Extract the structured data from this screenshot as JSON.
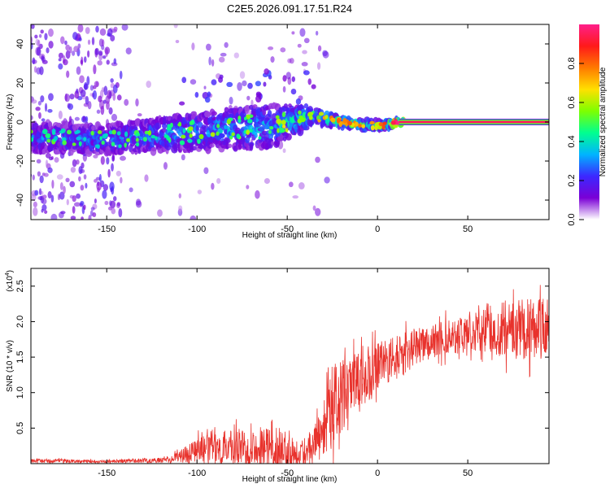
{
  "title": "C2E5.2026.091.17.51.R24",
  "chart_data": [
    {
      "type": "heatmap",
      "xlabel": "Height of straight line (km)",
      "ylabel": "Frequency (Hz)",
      "xlim": [
        -192,
        95
      ],
      "ylim": [
        -50,
        50
      ],
      "xticks": [
        "-150",
        "-100",
        "-50",
        "0",
        "50"
      ],
      "xtick_values": [
        -150,
        -100,
        -50,
        0,
        50
      ],
      "yticks": [
        "-40",
        "-20",
        "0",
        "20",
        "40"
      ],
      "ytick_values": [
        -40,
        -20,
        0,
        20,
        40
      ],
      "colorbar": {
        "label": "Normalized spectral amplitude",
        "range": [
          0,
          1
        ],
        "ticks": [
          "0.0",
          "0.2",
          "0.4",
          "0.6",
          "0.8"
        ],
        "tick_values": [
          0.0,
          0.2,
          0.4,
          0.6,
          0.8
        ],
        "colors": [
          "#ffffff",
          "#7a00d6",
          "#3c28ff",
          "#00b4ff",
          "#00ff90",
          "#7dff00",
          "#ffe000",
          "#ff7a00",
          "#ff1a1a",
          "#ff1f8a"
        ]
      },
      "band": [
        {
          "x": -190,
          "center": -8,
          "width": 9,
          "amp": 0.3
        },
        {
          "x": -150,
          "center": -9,
          "width": 9,
          "amp": 0.3
        },
        {
          "x": -100,
          "center": -5,
          "width": 12,
          "amp": 0.35
        },
        {
          "x": -60,
          "center": -2,
          "width": 14,
          "amp": 0.38
        },
        {
          "x": -35,
          "center": 3,
          "width": 5,
          "amp": 0.5
        },
        {
          "x": -20,
          "center": 0,
          "width": 3,
          "amp": 0.6
        },
        {
          "x": 0,
          "center": -2,
          "width": 3,
          "amp": 0.5
        },
        {
          "x": 12,
          "center": 0,
          "width": 2,
          "amp": 0.95
        },
        {
          "x": 95,
          "center": 0,
          "width": 2,
          "amp": 0.95
        }
      ]
    },
    {
      "type": "line",
      "xlabel": "Height of straight line (km)",
      "ylabel": "SNR (10 * v/v)",
      "scale_note": "(x10",
      "scale_exp": "4",
      "xlim": [
        -192,
        95
      ],
      "ylim": [
        0,
        2.75
      ],
      "xticks": [
        "-150",
        "-100",
        "-50",
        "0",
        "50"
      ],
      "xtick_values": [
        -150,
        -100,
        -50,
        0,
        50
      ],
      "yticks": [
        "0.5",
        "1.0",
        "1.5",
        "2.0",
        "2.5"
      ],
      "ytick_values": [
        0.5,
        1.0,
        1.5,
        2.0,
        2.5
      ],
      "color": "#e8322c",
      "envelope": [
        {
          "x": -192,
          "mean": 0.04,
          "spread": 0.03
        },
        {
          "x": -150,
          "mean": 0.03,
          "spread": 0.02
        },
        {
          "x": -115,
          "mean": 0.05,
          "spread": 0.04
        },
        {
          "x": -100,
          "mean": 0.2,
          "spread": 0.18
        },
        {
          "x": -70,
          "mean": 0.25,
          "spread": 0.28
        },
        {
          "x": -50,
          "mean": 0.2,
          "spread": 0.3
        },
        {
          "x": -40,
          "mean": 0.15,
          "spread": 0.15
        },
        {
          "x": -25,
          "mean": 0.8,
          "spread": 0.6
        },
        {
          "x": 0,
          "mean": 1.35,
          "spread": 0.35
        },
        {
          "x": 25,
          "mean": 1.7,
          "spread": 0.25
        },
        {
          "x": 50,
          "mean": 1.85,
          "spread": 0.25
        },
        {
          "x": 70,
          "mean": 1.9,
          "spread": 0.4
        },
        {
          "x": 95,
          "mean": 1.9,
          "spread": 0.5
        }
      ]
    }
  ]
}
